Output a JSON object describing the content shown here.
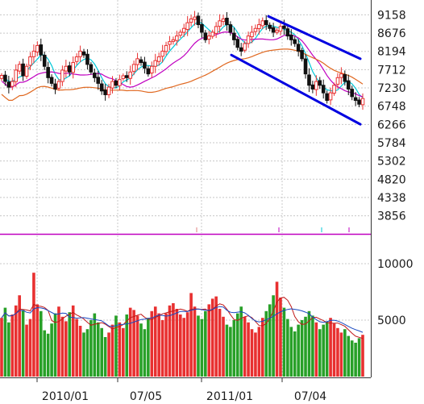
{
  "chart_data": [
    {
      "type": "candlestick",
      "title": "",
      "ylabel": "",
      "y_ticks": [
        9158,
        8676,
        8194,
        7712,
        7230,
        6748,
        6266,
        5784,
        5302,
        4820,
        4338,
        3856
      ],
      "ylim": [
        3400,
        9550
      ],
      "x_ticks": [
        "2010/01",
        "07/05",
        "2011/01",
        "07/04"
      ],
      "grid": true,
      "up_color": "#e83030",
      "down_color": "#111111",
      "moving_averages": [
        {
          "color": "#00c8d8"
        },
        {
          "color": "#c000c0"
        },
        {
          "color": "#e06820"
        }
      ],
      "trend_channel": {
        "color": "#0000e0",
        "upper": {
          "from": [
            "2011/05",
            9120
          ],
          "to": [
            "2011/12",
            8000
          ]
        },
        "lower": {
          "from": [
            "2011/02",
            8100
          ],
          "to": [
            "2011/12",
            6270
          ]
        }
      },
      "close_series": [
        7560,
        7400,
        7250,
        7400,
        7700,
        7850,
        7550,
        7800,
        8050,
        8200,
        8350,
        8100,
        7800,
        7500,
        7350,
        7200,
        7400,
        7700,
        7800,
        7650,
        7900,
        8050,
        8200,
        8100,
        7850,
        7650,
        7500,
        7350,
        7150,
        7050,
        7250,
        7400,
        7300,
        7450,
        7550,
        7500,
        7650,
        7850,
        8000,
        7900,
        7750,
        7600,
        7800,
        7950,
        8050,
        8200,
        8350,
        8450,
        8500,
        8600,
        8700,
        8800,
        8950,
        9050,
        9100,
        8900,
        8700,
        8500,
        8600,
        8700,
        8850,
        9000,
        9050,
        8900,
        8700,
        8500,
        8300,
        8200,
        8400,
        8600,
        8700,
        8800,
        8900,
        9000,
        8900,
        8800,
        8700,
        8750,
        8850,
        8800,
        8600,
        8500,
        8400,
        8200,
        8000,
        7600,
        7300,
        7200,
        7400,
        7300,
        7100,
        6900,
        7100,
        7300,
        7500,
        7600,
        7400,
        7200,
        7000,
        6900,
        6800,
        6950
      ]
    },
    {
      "type": "bar",
      "title": "",
      "ylabel": "",
      "y_ticks": [
        10000,
        5000
      ],
      "ylim": [
        0,
        12500
      ],
      "x_ticks": [
        "2010/01",
        "07/05",
        "2011/01",
        "07/04"
      ],
      "grid": true,
      "up_color": "#e83030",
      "down_color": "#28a028",
      "moving_averages": [
        {
          "color": "#c01818"
        },
        {
          "color": "#1848c0"
        }
      ],
      "volume_series": [
        5200,
        6100,
        4800,
        5500,
        6300,
        7200,
        5900,
        4600,
        5100,
        9200,
        6400,
        5800,
        4100,
        3800,
        4700,
        5600,
        6200,
        5300,
        4900,
        5700,
        6300,
        5100,
        4500,
        3900,
        4200,
        5000,
        5600,
        4800,
        4300,
        3500,
        3900,
        4600,
        5400,
        4800,
        4300,
        5500,
        6100,
        5900,
        5400,
        4700,
        4200,
        5200,
        5800,
        6200,
        5600,
        5000,
        5600,
        6300,
        6500,
        6000,
        5500,
        5200,
        5700,
        7400,
        6200,
        5400,
        5100,
        5800,
        6400,
        6900,
        7100,
        6000,
        5300,
        4600,
        4400,
        5000,
        5600,
        6200,
        5300,
        4800,
        4200,
        3900,
        4400,
        5200,
        5800,
        6400,
        7200,
        8400,
        7000,
        6100,
        5100,
        4400,
        4000,
        4600,
        5000,
        5300,
        5800,
        5400,
        4800,
        4200,
        4600,
        4900,
        5200,
        4700,
        4300,
        3900,
        4200,
        3600,
        3200,
        3000,
        3400,
        3700
      ]
    }
  ]
}
